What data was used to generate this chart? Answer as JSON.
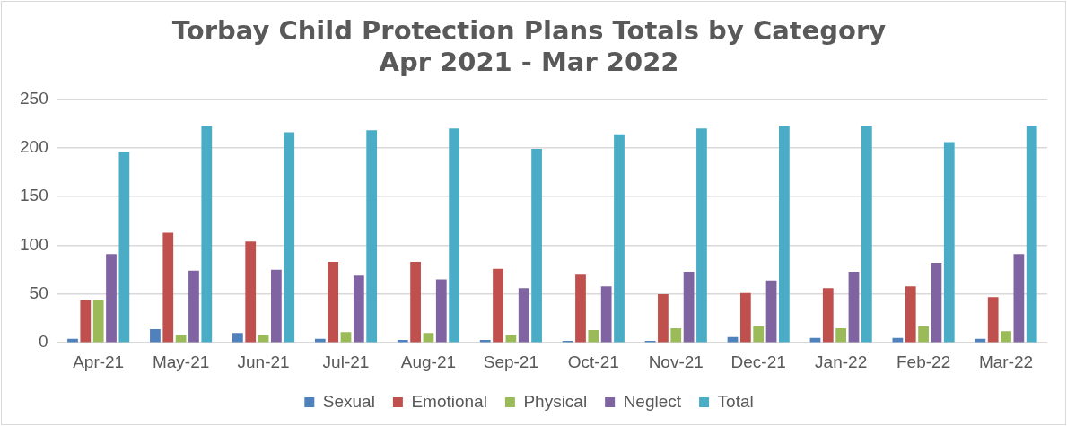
{
  "chart_data": {
    "type": "bar",
    "title": "Torbay Child Protection Plans Totals by Category\nApr 2021 - Mar 2022",
    "categories": [
      "Apr-21",
      "May-21",
      "Jun-21",
      "Jul-21",
      "Aug-21",
      "Sep-21",
      "Oct-21",
      "Nov-21",
      "Dec-21",
      "Jan-22",
      "Feb-22",
      "Mar-22"
    ],
    "series": [
      {
        "name": "Sexual",
        "color": "#4f81bd",
        "values": [
          4,
          14,
          10,
          4,
          3,
          3,
          2,
          2,
          6,
          5,
          5,
          4
        ]
      },
      {
        "name": "Emotional",
        "color": "#c0504d",
        "values": [
          44,
          113,
          104,
          83,
          83,
          76,
          70,
          50,
          51,
          56,
          58,
          47
        ]
      },
      {
        "name": "Physical",
        "color": "#9bbb59",
        "values": [
          44,
          8,
          8,
          11,
          10,
          8,
          13,
          15,
          17,
          15,
          17,
          12
        ]
      },
      {
        "name": "Neglect",
        "color": "#8064a2",
        "values": [
          91,
          74,
          75,
          69,
          65,
          56,
          58,
          73,
          64,
          73,
          82,
          91
        ]
      },
      {
        "name": "Total",
        "color": "#4bacc6",
        "values": [
          196,
          223,
          216,
          218,
          220,
          199,
          214,
          220,
          223,
          223,
          206,
          223
        ]
      }
    ],
    "ylim": [
      0,
      250
    ],
    "yticks": [
      0,
      50,
      100,
      150,
      200,
      250
    ],
    "grid": "y",
    "legend": "bottom"
  }
}
